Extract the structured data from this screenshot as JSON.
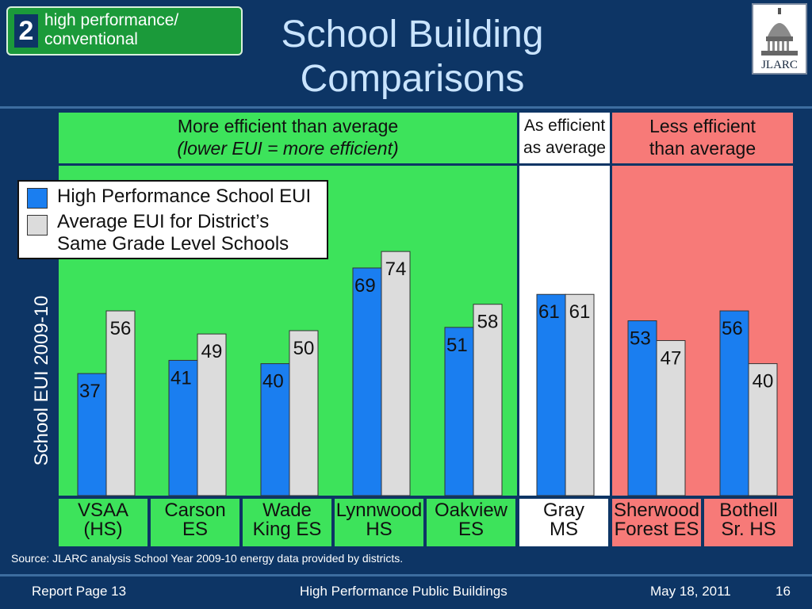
{
  "badge": {
    "number": "2",
    "line1": "high performance/",
    "line2": "conventional"
  },
  "slide": {
    "title_line1": "School Building",
    "title_line2": "Comparisons"
  },
  "logo": {
    "text": "JLARC"
  },
  "zones": {
    "more": {
      "line1": "More efficient than average",
      "line2": "(lower EUI = more efficient)"
    },
    "same": {
      "line1": "As efficient",
      "line2": "as average"
    },
    "less": {
      "line1": "Less efficient",
      "line2": "than average"
    }
  },
  "colors": {
    "high": "#1a7ef0",
    "avg": "#dcdcdc",
    "more_zone": "#3de35b",
    "same_zone": "#ffffff",
    "less_zone": "#f77a78"
  },
  "chart_data": {
    "type": "bar",
    "categories": [
      [
        "VSAA",
        "(HS)"
      ],
      [
        "Carson",
        "ES"
      ],
      [
        "Wade",
        "King ES"
      ],
      [
        "Lynnwood",
        "HS"
      ],
      [
        "Oakview",
        "ES"
      ],
      [
        "Gray",
        "MS"
      ],
      [
        "Sherwood",
        "Forest ES"
      ],
      [
        "Bothell",
        "Sr. HS"
      ]
    ],
    "series": [
      {
        "name": "High Performance School EUI",
        "values": [
          37,
          41,
          40,
          69,
          51,
          61,
          53,
          56
        ]
      },
      {
        "name_line1": "Average EUI for District’s",
        "name_line2": "Same Grade Level Schools",
        "values": [
          56,
          49,
          50,
          74,
          58,
          61,
          47,
          40
        ]
      }
    ],
    "ylabel": "School EUI 2009-10",
    "ylim": [
      0,
      100
    ],
    "grid": false,
    "legend": "top-left"
  },
  "source": "Source: JLARC analysis School Year 2009-10 energy data provided by districts.",
  "footer": {
    "left": "Report Page 13",
    "center": "High Performance Public Buildings",
    "date": "May 18, 2011",
    "page": "16"
  }
}
